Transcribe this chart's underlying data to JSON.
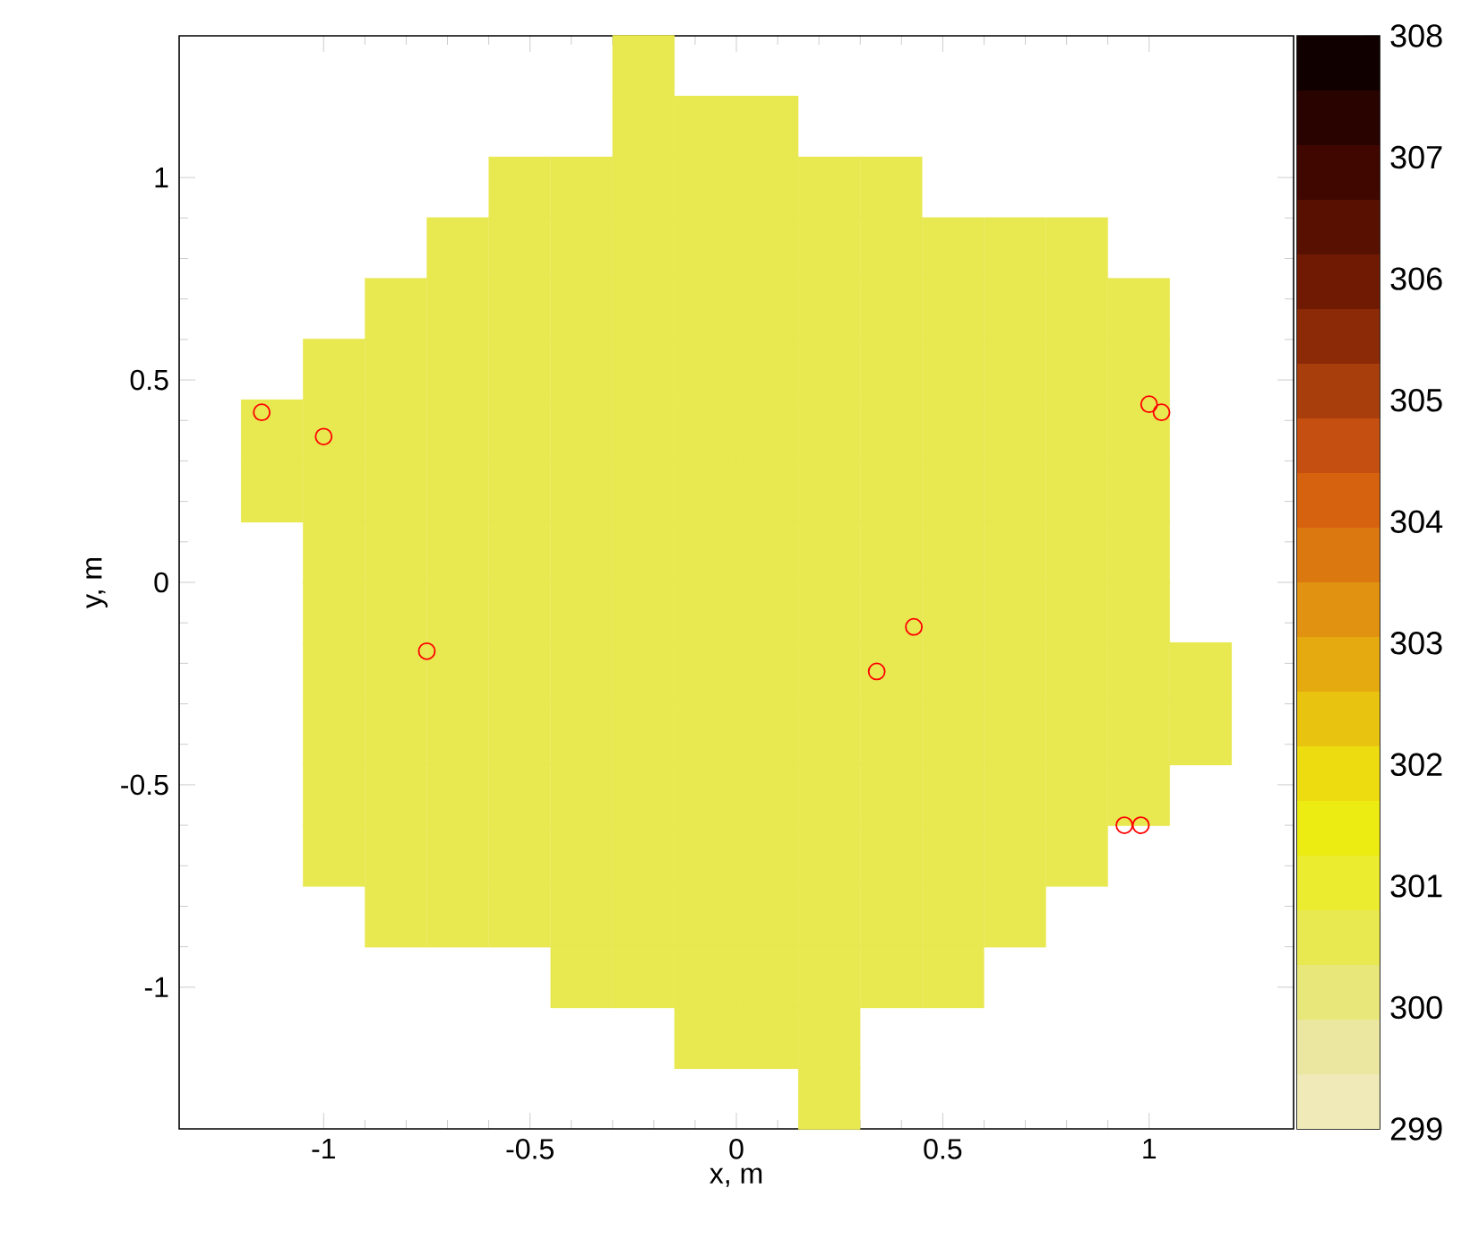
{
  "chart_data": {
    "type": "scatter",
    "xlabel": "x, m",
    "ylabel": "y, m",
    "xlim": [
      -1.35,
      1.35
    ],
    "ylim": [
      -1.35,
      1.35
    ],
    "xticks": [
      -1,
      -0.5,
      0,
      0.5,
      1
    ],
    "yticks": [
      -1,
      -0.5,
      0,
      0.5,
      1
    ],
    "clim": [
      299,
      308
    ],
    "cticks": [
      299,
      300,
      301,
      302,
      303,
      304,
      305,
      306,
      307,
      308
    ],
    "series": [
      {
        "marker": "square",
        "x": [
          -0.225
        ],
        "values": [
          1.275
        ],
        "cvalues": [
          300.5
        ]
      },
      {
        "marker": "square",
        "x": [
          -0.225,
          -0.075,
          0.075
        ],
        "values": [
          1.125,
          1.125,
          1.125
        ],
        "cvalues": [
          300.5,
          300.5,
          300.5
        ]
      },
      {
        "marker": "square",
        "x": [
          -0.525,
          -0.375,
          -0.225,
          -0.075,
          0.075,
          0.225,
          0.375
        ],
        "values": [
          0.975,
          0.975,
          0.975,
          0.975,
          0.975,
          0.975,
          0.975
        ],
        "cvalues": [
          300.5,
          300.5,
          300.5,
          300.5,
          300.5,
          300.5,
          300.5
        ]
      },
      {
        "marker": "square",
        "x": [
          -0.675,
          -0.525,
          -0.375,
          -0.225,
          -0.075,
          0.075,
          0.225,
          0.375,
          0.525,
          0.675,
          0.825
        ],
        "values": [
          0.825,
          0.825,
          0.825,
          0.825,
          0.825,
          0.825,
          0.825,
          0.825,
          0.825,
          0.825,
          0.825
        ],
        "cvalues": [
          300.5,
          300.5,
          300.5,
          300.5,
          300.5,
          300.5,
          300.5,
          300.5,
          300.5,
          300.5,
          300.5
        ]
      },
      {
        "marker": "square",
        "x": [
          -0.825,
          -0.675,
          -0.525,
          -0.375,
          -0.225,
          -0.075,
          0.075,
          0.225,
          0.375,
          0.525,
          0.675,
          0.825,
          0.975
        ],
        "values": [
          0.675,
          0.675,
          0.675,
          0.675,
          0.675,
          0.675,
          0.675,
          0.675,
          0.675,
          0.675,
          0.675,
          0.675,
          0.675
        ],
        "cvalues": [
          300.5,
          300.5,
          300.5,
          300.5,
          300.5,
          300.5,
          300.5,
          300.5,
          300.5,
          300.5,
          300.5,
          300.5,
          300.5
        ]
      },
      {
        "marker": "square",
        "x": [
          -0.975,
          -0.825,
          -0.675,
          -0.525,
          -0.375,
          -0.225,
          -0.075,
          0.075,
          0.225,
          0.375,
          0.525,
          0.675,
          0.825,
          0.975
        ],
        "values": [
          0.525,
          0.525,
          0.525,
          0.525,
          0.525,
          0.525,
          0.525,
          0.525,
          0.525,
          0.525,
          0.525,
          0.525,
          0.525,
          0.525
        ],
        "cvalues": [
          300.5,
          300.5,
          300.5,
          300.5,
          300.5,
          300.5,
          300.5,
          300.5,
          300.5,
          300.5,
          300.5,
          300.5,
          300.5,
          300.5
        ]
      },
      {
        "marker": "square",
        "x": [
          -1.125,
          -0.975,
          -0.825,
          -0.675,
          -0.525,
          -0.375,
          -0.225,
          -0.075,
          0.075,
          0.225,
          0.375,
          0.525,
          0.675,
          0.825,
          0.975
        ],
        "values": [
          0.375,
          0.375,
          0.375,
          0.375,
          0.375,
          0.375,
          0.375,
          0.375,
          0.375,
          0.375,
          0.375,
          0.375,
          0.375,
          0.375,
          0.375
        ],
        "cvalues": [
          300.5,
          300.5,
          300.5,
          300.5,
          300.5,
          300.5,
          300.5,
          300.5,
          300.5,
          300.5,
          300.5,
          300.5,
          300.5,
          300.5,
          300.5
        ]
      },
      {
        "marker": "square",
        "x": [
          -1.125,
          -0.975,
          -0.825,
          -0.675,
          -0.525,
          -0.375,
          -0.225,
          -0.075,
          0.075,
          0.225,
          0.375,
          0.525,
          0.675,
          0.825,
          0.975
        ],
        "values": [
          0.225,
          0.225,
          0.225,
          0.225,
          0.225,
          0.225,
          0.225,
          0.225,
          0.225,
          0.225,
          0.225,
          0.225,
          0.225,
          0.225,
          0.225
        ],
        "cvalues": [
          300.5,
          300.5,
          300.5,
          300.5,
          300.5,
          300.5,
          300.5,
          300.5,
          300.5,
          300.5,
          300.5,
          300.5,
          300.5,
          300.5,
          300.5
        ]
      },
      {
        "marker": "square",
        "x": [
          -0.975,
          -0.825,
          -0.675,
          -0.525,
          -0.375,
          -0.225,
          -0.075,
          0.075,
          0.225,
          0.375,
          0.525,
          0.675,
          0.825,
          0.975
        ],
        "values": [
          0.075,
          0.075,
          0.075,
          0.075,
          0.075,
          0.075,
          0.075,
          0.075,
          0.075,
          0.075,
          0.075,
          0.075,
          0.075,
          0.075
        ],
        "cvalues": [
          300.5,
          300.5,
          300.5,
          300.5,
          300.5,
          300.5,
          300.5,
          300.5,
          300.5,
          300.5,
          300.5,
          300.5,
          300.5,
          300.5
        ]
      },
      {
        "marker": "square",
        "x": [
          -0.975,
          -0.825,
          -0.675,
          -0.525,
          -0.375,
          -0.225,
          -0.075,
          0.075,
          0.225,
          0.375,
          0.525,
          0.675,
          0.825,
          0.975
        ],
        "values": [
          -0.075,
          -0.075,
          -0.075,
          -0.075,
          -0.075,
          -0.075,
          -0.075,
          -0.075,
          -0.075,
          -0.075,
          -0.075,
          -0.075,
          -0.075,
          -0.075
        ],
        "cvalues": [
          300.5,
          300.5,
          300.5,
          300.5,
          300.5,
          300.5,
          300.5,
          300.5,
          300.5,
          300.5,
          300.5,
          300.5,
          300.5,
          300.5
        ]
      },
      {
        "marker": "square",
        "x": [
          -0.975,
          -0.825,
          -0.675,
          -0.525,
          -0.375,
          -0.225,
          -0.075,
          0.075,
          0.225,
          0.375,
          0.525,
          0.675,
          0.825,
          0.975,
          1.125
        ],
        "values": [
          -0.225,
          -0.225,
          -0.225,
          -0.225,
          -0.225,
          -0.225,
          -0.225,
          -0.225,
          -0.225,
          -0.225,
          -0.225,
          -0.225,
          -0.225,
          -0.225,
          -0.225
        ],
        "cvalues": [
          300.5,
          300.5,
          300.5,
          300.5,
          300.5,
          300.5,
          300.5,
          300.5,
          300.5,
          300.5,
          300.5,
          300.5,
          300.5,
          300.5,
          300.5
        ]
      },
      {
        "marker": "square",
        "x": [
          -0.975,
          -0.825,
          -0.675,
          -0.525,
          -0.375,
          -0.225,
          -0.075,
          0.075,
          0.225,
          0.375,
          0.525,
          0.675,
          0.825,
          0.975,
          1.125
        ],
        "values": [
          -0.375,
          -0.375,
          -0.375,
          -0.375,
          -0.375,
          -0.375,
          -0.375,
          -0.375,
          -0.375,
          -0.375,
          -0.375,
          -0.375,
          -0.375,
          -0.375,
          -0.375
        ],
        "cvalues": [
          300.5,
          300.5,
          300.5,
          300.5,
          300.5,
          300.5,
          300.5,
          300.5,
          300.5,
          300.5,
          300.5,
          300.5,
          300.5,
          300.5,
          300.5
        ]
      },
      {
        "marker": "square",
        "x": [
          -0.975,
          -0.825,
          -0.675,
          -0.525,
          -0.375,
          -0.225,
          -0.075,
          0.075,
          0.225,
          0.375,
          0.525,
          0.675,
          0.825,
          0.975
        ],
        "values": [
          -0.525,
          -0.525,
          -0.525,
          -0.525,
          -0.525,
          -0.525,
          -0.525,
          -0.525,
          -0.525,
          -0.525,
          -0.525,
          -0.525,
          -0.525,
          -0.525
        ],
        "cvalues": [
          300.5,
          300.5,
          300.5,
          300.5,
          300.5,
          300.5,
          300.5,
          300.5,
          300.5,
          300.5,
          300.5,
          300.5,
          300.5,
          300.5
        ]
      },
      {
        "marker": "square",
        "x": [
          -0.975,
          -0.825,
          -0.675,
          -0.525,
          -0.375,
          -0.225,
          -0.075,
          0.075,
          0.225,
          0.375,
          0.525,
          0.675,
          0.825
        ],
        "values": [
          -0.675,
          -0.675,
          -0.675,
          -0.675,
          -0.675,
          -0.675,
          -0.675,
          -0.675,
          -0.675,
          -0.675,
          -0.675,
          -0.675,
          -0.675
        ],
        "cvalues": [
          300.5,
          300.5,
          300.5,
          300.5,
          300.5,
          300.5,
          300.5,
          300.5,
          300.5,
          300.5,
          300.5,
          300.5,
          300.5
        ]
      },
      {
        "marker": "square",
        "x": [
          -0.825,
          -0.675,
          -0.525,
          -0.375,
          -0.225,
          -0.075,
          0.075,
          0.225,
          0.375,
          0.525,
          0.675
        ],
        "values": [
          -0.825,
          -0.825,
          -0.825,
          -0.825,
          -0.825,
          -0.825,
          -0.825,
          -0.825,
          -0.825,
          -0.825,
          -0.825
        ],
        "cvalues": [
          300.5,
          300.5,
          300.5,
          300.5,
          300.5,
          300.5,
          300.5,
          300.5,
          300.5,
          300.5,
          300.5
        ]
      },
      {
        "marker": "square",
        "x": [
          -0.375,
          -0.225,
          -0.075,
          0.075,
          0.225,
          0.375,
          0.525
        ],
        "values": [
          -0.975,
          -0.975,
          -0.975,
          -0.975,
          -0.975,
          -0.975,
          -0.975
        ],
        "cvalues": [
          300.5,
          300.5,
          300.5,
          300.5,
          300.5,
          300.5,
          300.5
        ]
      },
      {
        "marker": "square",
        "x": [
          -0.075,
          0.075,
          0.225
        ],
        "values": [
          -1.125,
          -1.125,
          -1.125
        ],
        "cvalues": [
          300.5,
          300.5,
          300.5
        ]
      },
      {
        "marker": "square",
        "x": [
          0.225
        ],
        "values": [
          -1.275
        ],
        "cvalues": [
          300.5
        ]
      },
      {
        "marker": "circle",
        "color": "#ff0000",
        "x": [
          -1.15,
          -1.0,
          -0.75,
          0.34,
          0.43,
          1.0,
          1.03,
          0.94,
          0.98
        ],
        "values": [
          0.42,
          0.36,
          -0.17,
          -0.22,
          -0.11,
          0.44,
          0.42,
          -0.6,
          -0.6
        ]
      }
    ]
  }
}
